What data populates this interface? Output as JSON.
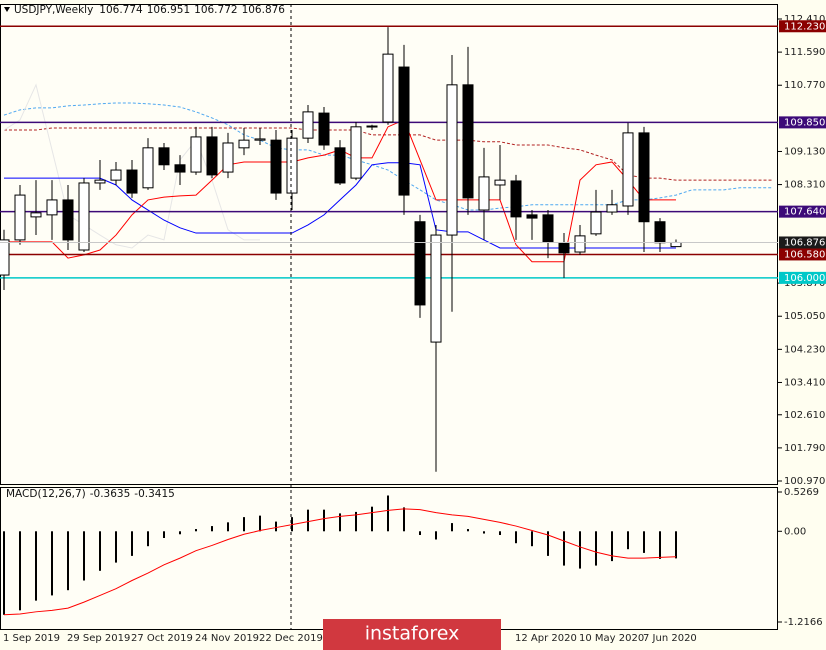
{
  "chart_data": [
    {
      "type": "candlestick",
      "title": "USDJPY,Weekly",
      "categories": [
        "1 Sep 2019",
        null,
        null,
        null,
        "29 Sep 2019",
        null,
        null,
        null,
        "27 Oct 2019",
        null,
        null,
        null,
        "24 Nov 2019",
        null,
        null,
        null,
        "22 Dec 2019",
        null,
        null,
        null,
        null,
        null,
        null,
        null,
        null,
        null,
        null,
        null,
        null,
        null,
        null,
        null,
        "12 Apr 2020",
        null,
        null,
        null,
        "10 May 2020",
        null,
        null,
        null,
        "7 Jun 2020",
        null,
        null,
        null,
        null,
        null,
        null,
        null,
        null
      ],
      "open": [
        106.07,
        106.94,
        107.51,
        107.56,
        107.93,
        106.69,
        108.35,
        108.42,
        108.67,
        108.23,
        109.22,
        108.8,
        108.62,
        109.49,
        108.62,
        109.22,
        109.41,
        109.41,
        108.1,
        109.46,
        110.08,
        109.22,
        108.47,
        109.74,
        109.86,
        111.22,
        107.39,
        104.41,
        107.06,
        110.78,
        107.68,
        108.3,
        108.4,
        107.56,
        107.56,
        106.87,
        106.64,
        107.09,
        107.63,
        107.78,
        109.59,
        107.39,
        106.774,
        null,
        null,
        null,
        null,
        null,
        null
      ],
      "high": [
        107.19,
        108.3,
        108.42,
        108.42,
        108.3,
        108.47,
        108.92,
        108.87,
        108.92,
        109.46,
        109.34,
        109.04,
        109.74,
        109.74,
        109.59,
        109.71,
        109.71,
        109.66,
        109.66,
        110.28,
        110.23,
        109.41,
        109.86,
        109.79,
        112.21,
        111.77,
        107.56,
        107.31,
        111.52,
        111.72,
        109.22,
        109.29,
        108.55,
        107.68,
        107.68,
        107.11,
        107.31,
        108.18,
        108.18,
        109.84,
        109.74,
        107.48,
        106.951,
        null,
        null,
        null,
        null,
        null,
        null
      ],
      "low": [
        105.7,
        106.82,
        107.06,
        106.94,
        106.69,
        106.64,
        108.18,
        108.3,
        107.98,
        108.18,
        108.67,
        108.3,
        108.55,
        108.47,
        108.47,
        109.04,
        109.29,
        107.93,
        107.68,
        109.34,
        109.17,
        108.3,
        108.42,
        109.66,
        109.79,
        107.56,
        105.01,
        101.2,
        105.16,
        107.56,
        106.94,
        107.93,
        106.94,
        106.94,
        106.49,
        106.0,
        106.57,
        107.04,
        107.56,
        107.56,
        106.64,
        106.64,
        106.772,
        null,
        null,
        null,
        null,
        null,
        null
      ],
      "close": [
        106.94,
        108.05,
        107.61,
        107.93,
        106.94,
        108.35,
        108.42,
        108.67,
        108.1,
        109.22,
        108.8,
        108.62,
        109.49,
        108.55,
        109.34,
        109.41,
        109.44,
        108.1,
        109.46,
        110.11,
        109.29,
        108.35,
        109.74,
        109.76,
        111.54,
        108.05,
        105.33,
        107.06,
        110.78,
        107.98,
        108.5,
        108.42,
        107.51,
        107.48,
        106.89,
        106.62,
        107.04,
        107.63,
        107.81,
        109.59,
        107.39,
        106.87,
        106.876,
        null,
        null,
        null,
        null,
        null,
        null
      ],
      "up_color": "#ffffff",
      "down_color": "#000000",
      "current_price_color": "#c8c8c8",
      "ylim": [
        100.97,
        112.41
      ],
      "yticks": [
        {
          "value": 112.41,
          "label": "112.410"
        },
        {
          "value": 111.59,
          "label": "111.590"
        },
        {
          "value": 110.77,
          "label": "110.770"
        },
        {
          "value": 109.13,
          "label": "109.130"
        },
        {
          "value": 108.31,
          "label": "108.310"
        },
        {
          "value": 105.87,
          "label": "105.870"
        },
        {
          "value": 105.05,
          "label": "105.050"
        },
        {
          "value": 104.23,
          "label": "104.230"
        },
        {
          "value": 103.41,
          "label": "103.410"
        },
        {
          "value": 102.61,
          "label": "102.610"
        },
        {
          "value": 101.79,
          "label": "101.790"
        },
        {
          "value": 100.97,
          "label": "100.970"
        }
      ],
      "levels": [
        {
          "value": 112.23,
          "label": "112.230",
          "color": "#8b0000"
        },
        {
          "value": 109.85,
          "label": "109.850",
          "color": "#3c0a78"
        },
        {
          "value": 107.64,
          "label": "107.640",
          "color": "#3c0a78"
        },
        {
          "value": 106.58,
          "label": "106.580",
          "color": "#8b0000"
        },
        {
          "value": 106,
          "label": "106.000",
          "color": "#00c8c8"
        }
      ],
      "overlays": [
        {
          "color": "#4fa8f0",
          "dashed": true,
          "values": [
            110.03,
            110.16,
            110.21,
            110.21,
            110.26,
            110.28,
            110.31,
            110.33,
            110.33,
            110.31,
            110.28,
            110.23,
            110.11,
            109.96,
            109.79,
            109.54,
            109.41,
            109.22,
            109.17,
            109.17,
            109.04,
            109.04,
            108.92,
            108.8,
            108.67,
            108.42,
            108.18,
            107.93,
            107.81,
            107.68,
            107.68,
            107.73,
            107.76,
            107.81,
            107.81,
            107.81,
            107.81,
            107.81,
            107.81,
            107.93,
            107.93,
            107.98,
            108.05,
            108.18,
            108.18,
            108.18,
            108.23,
            108.23,
            108.23
          ]
        },
        {
          "color": "#b22222",
          "dashed": true,
          "values": [
            109.66,
            109.66,
            109.66,
            109.71,
            109.71,
            109.71,
            109.71,
            109.71,
            109.71,
            109.71,
            109.71,
            109.71,
            109.71,
            109.71,
            109.71,
            109.71,
            109.71,
            109.71,
            109.71,
            109.66,
            109.66,
            109.66,
            109.66,
            109.54,
            109.54,
            109.54,
            109.54,
            109.41,
            109.41,
            109.41,
            109.37,
            109.37,
            109.29,
            109.29,
            109.29,
            109.22,
            109.17,
            109.04,
            108.92,
            108.55,
            108.47,
            108.47,
            108.42,
            108.42,
            108.42,
            108.42,
            108.42,
            108.42,
            108.42
          ]
        },
        {
          "color": "#e6e6e6",
          "dashed": false,
          "values": [
            109.66,
            109.91,
            110.78,
            109.17,
            107.56,
            107.31,
            107.06,
            106.82,
            106.74,
            107.06,
            106.94,
            108.92,
            109.41,
            108.42,
            107.19,
            106.94,
            106.94,
            null,
            null,
            null,
            null,
            null,
            null,
            null,
            null,
            null,
            null,
            null,
            null,
            null,
            null,
            null,
            null,
            null,
            null,
            null,
            null,
            null,
            null,
            null,
            null,
            null,
            null,
            null,
            null,
            null,
            null,
            null,
            null
          ]
        },
        {
          "color": "#0000ff",
          "dashed": false,
          "values": [
            108.47,
            108.47,
            108.47,
            108.47,
            108.47,
            108.47,
            108.47,
            108.3,
            107.93,
            107.68,
            107.43,
            107.24,
            107.11,
            107.11,
            107.11,
            107.11,
            107.11,
            107.11,
            107.11,
            107.31,
            107.56,
            107.93,
            108.3,
            108.8,
            108.85,
            108.85,
            108.8,
            107.19,
            107.14,
            107.14,
            106.94,
            106.74,
            106.74,
            106.74,
            106.74,
            106.74,
            106.74,
            106.74,
            106.74,
            106.74,
            106.74,
            106.74,
            106.74,
            null,
            null,
            null,
            null,
            null,
            null
          ]
        },
        {
          "color": "#ff0000",
          "dashed": false,
          "values": [
            106.89,
            106.89,
            106.89,
            106.89,
            106.49,
            106.57,
            106.69,
            107.06,
            107.56,
            107.93,
            108.0,
            108.03,
            108.05,
            108.42,
            108.8,
            108.87,
            108.87,
            108.87,
            108.87,
            108.97,
            109.04,
            109.17,
            108.97,
            108.97,
            109.74,
            109.91,
            108.92,
            107.93,
            107.93,
            107.93,
            107.93,
            107.93,
            106.82,
            106.4,
            106.4,
            106.4,
            108.42,
            108.8,
            108.87,
            108.42,
            107.93,
            107.93,
            107.93,
            null,
            null,
            null,
            null,
            null,
            null
          ]
        }
      ]
    },
    {
      "type": "bar",
      "title": "MACD(12,26,7)",
      "color": "#000000",
      "values": [
        -1.12,
        -1.06,
        -0.93,
        -0.86,
        -0.79,
        -0.66,
        -0.53,
        -0.42,
        -0.33,
        -0.2,
        -0.09,
        -0.04,
        0.03,
        0.07,
        0.12,
        0.19,
        0.21,
        0.13,
        0.19,
        0.29,
        0.29,
        0.24,
        0.26,
        0.33,
        0.48,
        0.32,
        -0.05,
        -0.11,
        0.11,
        0.03,
        -0.03,
        -0.05,
        -0.16,
        -0.2,
        -0.33,
        -0.46,
        -0.5,
        -0.46,
        -0.4,
        -0.24,
        -0.29,
        -0.37,
        -0.3635
      ],
      "line": {
        "color": "#ff0000",
        "values": [
          -1.12,
          -1.11,
          -1.08,
          -1.06,
          -1.03,
          -0.95,
          -0.86,
          -0.77,
          -0.66,
          -0.56,
          -0.45,
          -0.36,
          -0.26,
          -0.19,
          -0.11,
          -0.04,
          0.01,
          0.05,
          0.09,
          0.13,
          0.17,
          0.2,
          0.22,
          0.25,
          0.28,
          0.3,
          0.29,
          0.25,
          0.22,
          0.2,
          0.16,
          0.12,
          0.07,
          0.01,
          -0.05,
          -0.13,
          -0.21,
          -0.28,
          -0.33,
          -0.36,
          -0.36,
          -0.35,
          -0.3415
        ]
      },
      "ylim": [
        -1.2166,
        0.5269
      ],
      "yticks": [
        0.5269,
        {
          "value": 0,
          "label": "0.00"
        },
        -1.2166
      ]
    }
  ],
  "watermark": "instaforex"
}
